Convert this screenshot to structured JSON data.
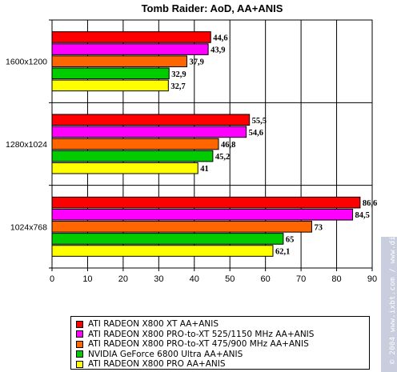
{
  "chart_data": {
    "type": "bar",
    "orientation": "horizontal",
    "title": "Tomb Raider: AoD, AA+ANIS",
    "categories": [
      "1600x1200",
      "1280x1024",
      "1024x768"
    ],
    "series": [
      {
        "name": "ATI RADEON X800 XT AA+ANIS",
        "color": "#ff0000",
        "values": [
          44.6,
          55.5,
          86.6
        ],
        "labels": [
          "44,6",
          "55,5",
          "86,6"
        ]
      },
      {
        "name": "ATI RADEON X800 PRO-to-XT 525/1150 MHz AA+ANIS",
        "color": "#ff00ff",
        "values": [
          43.9,
          54.6,
          84.5
        ],
        "labels": [
          "43,9",
          "54,6",
          "84,5"
        ]
      },
      {
        "name": "ATI RADEON X800 PRO-to-XT 475/900 MHz AA+ANIS",
        "color": "#ff6600",
        "values": [
          37.9,
          46.8,
          73
        ],
        "labels": [
          "37,9",
          "46,8",
          "73"
        ]
      },
      {
        "name": "NVIDIA GeForce 6800 Ultra AA+ANIS",
        "color": "#00cc00",
        "values": [
          32.9,
          45.2,
          65
        ],
        "labels": [
          "32,9",
          "45,2",
          "65"
        ]
      },
      {
        "name": "ATI RADEON X800 PRO AA+ANIS",
        "color": "#ffff00",
        "values": [
          32.7,
          41,
          62.1
        ],
        "labels": [
          "32,7",
          "41",
          "62,1"
        ]
      }
    ],
    "xlim": [
      0,
      90
    ],
    "xticks": [
      "0",
      "10",
      "20",
      "30",
      "40",
      "50",
      "60",
      "70",
      "80",
      "90"
    ],
    "grid": true,
    "legend_position": "bottom"
  },
  "watermark": "© 2004 www.ixbt.com / www.digit-life.com"
}
